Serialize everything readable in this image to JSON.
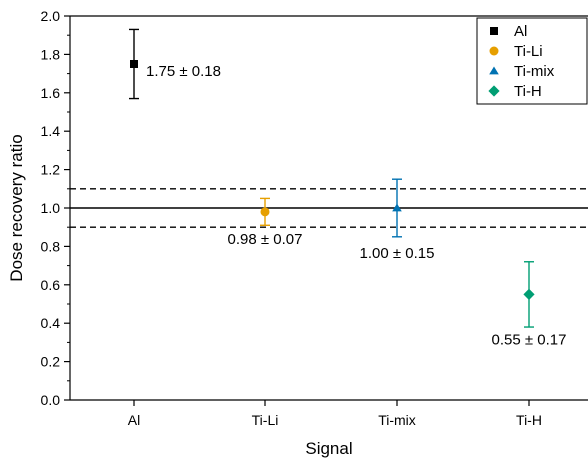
{
  "chart_data": {
    "type": "scatter",
    "xlabel": "Signal",
    "ylabel": "Dose recovery ratio",
    "categories": [
      "Al",
      "Ti-Li",
      "Ti-mix",
      "Ti-H"
    ],
    "ylim": [
      0.0,
      2.0
    ],
    "yticks": [
      0.0,
      0.2,
      0.4,
      0.6,
      0.8,
      1.0,
      1.2,
      1.4,
      1.6,
      1.8,
      2.0
    ],
    "ytick_labels": [
      "0.0",
      "0.2",
      "0.4",
      "0.6",
      "0.8",
      "1.0",
      "1.2",
      "1.4",
      "1.6",
      "1.8",
      "2.0"
    ],
    "series": [
      {
        "name": "Al",
        "category": "Al",
        "value": 1.75,
        "error": 0.18,
        "label": "1.75 ± 0.18",
        "color": "#000000",
        "marker": "square"
      },
      {
        "name": "Ti-Li",
        "category": "Ti-Li",
        "value": 0.98,
        "error": 0.07,
        "label": "0.98 ± 0.07",
        "color": "#e69f00",
        "marker": "circle"
      },
      {
        "name": "Ti-mix",
        "category": "Ti-mix",
        "value": 1.0,
        "error": 0.15,
        "label": "1.00 ± 0.15",
        "color": "#0072b2",
        "marker": "triangle"
      },
      {
        "name": "Ti-H",
        "category": "Ti-H",
        "value": 0.55,
        "error": 0.17,
        "label": "0.55 ± 0.17",
        "color": "#009e73",
        "marker": "diamond"
      }
    ],
    "reference_lines": [
      {
        "y": 1.0,
        "style": "solid"
      },
      {
        "y": 1.1,
        "style": "dashed"
      },
      {
        "y": 0.9,
        "style": "dashed"
      }
    ],
    "legend_position": "top-right",
    "grid": false
  }
}
